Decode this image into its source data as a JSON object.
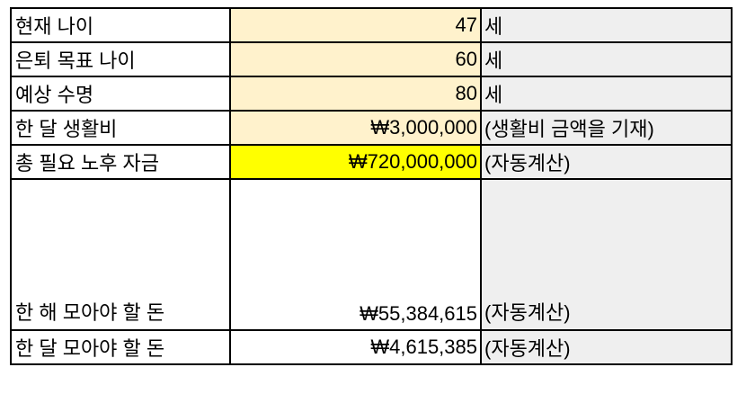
{
  "colors": {
    "input_cell": "#fff2cc",
    "highlight_cell": "#ffff00",
    "note_cell": "#efefef",
    "border": "#000000"
  },
  "rows": [
    {
      "label": "현재 나이",
      "value": "47",
      "note": "세"
    },
    {
      "label": "은퇴 목표 나이",
      "value": "60",
      "note": "세"
    },
    {
      "label": "예상 수명",
      "value": "80",
      "note": "세"
    },
    {
      "label": "한 달 생활비",
      "value": "₩3,000,000",
      "note": "(생활비 금액을 기재)"
    },
    {
      "label": "총 필요 노후 자금",
      "value": "₩720,000,000",
      "note": "(자동계산)"
    },
    {
      "label": "한 해 모아야 할 돈",
      "value": "₩55,384,615",
      "note": "(자동계산)"
    },
    {
      "label": "한 달 모아야 할 돈",
      "value": "₩4,615,385",
      "note": "(자동계산)"
    }
  ]
}
